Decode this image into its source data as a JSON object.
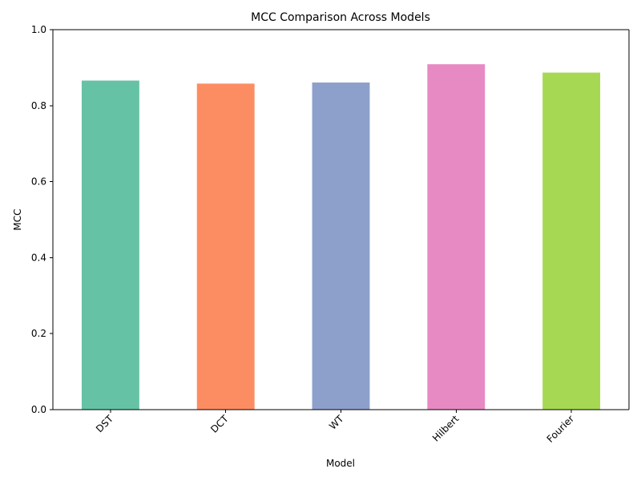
{
  "chart_data": {
    "type": "bar",
    "title": "MCC Comparison Across Models",
    "xlabel": "Model",
    "ylabel": "MCC",
    "categories": [
      "DST",
      "DCT",
      "WT",
      "Hilbert",
      "Fourier"
    ],
    "values": [
      0.866,
      0.858,
      0.861,
      0.909,
      0.887
    ],
    "colors": [
      "#66c2a5",
      "#fc8d62",
      "#8da0cb",
      "#e78ac3",
      "#a6d854"
    ],
    "ylim": [
      0,
      1.0
    ],
    "yticks": [
      0.0,
      0.2,
      0.4,
      0.6,
      0.8,
      1.0
    ],
    "ytick_labels": [
      "0.0",
      "0.2",
      "0.4",
      "0.6",
      "0.8",
      "1.0"
    ],
    "xtick_rotation_deg": 45,
    "grid": false,
    "legend": "none"
  }
}
